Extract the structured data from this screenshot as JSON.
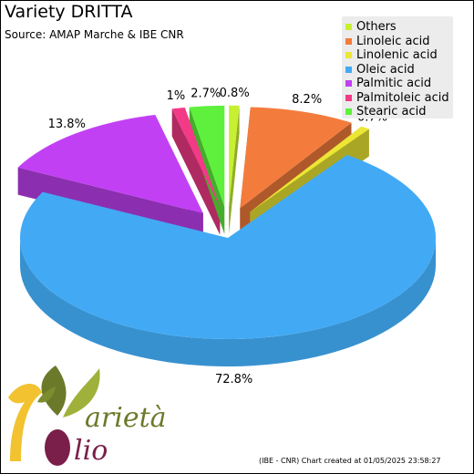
{
  "header": {
    "title": "Variety DRITTA",
    "subtitle": "Source: AMAP Marche & IBE CNR"
  },
  "footer": {
    "text": "(IBE - CNR) Chart created at 01/05/2025 23:58:27"
  },
  "logo": {
    "line1": "arietà",
    "line2": "lio",
    "colors": {
      "olive_dark": "#6b7a2a",
      "olive_light": "#9fb13a",
      "gold": "#f2c230",
      "wine": "#7a1f4a"
    }
  },
  "chart_data": {
    "type": "pie",
    "title": "Variety DRITTA",
    "subtitle": "Source: AMAP Marche & IBE CNR",
    "legend_position": "top-right",
    "slices": [
      {
        "name": "Others",
        "value": 0.8,
        "label": "0.8%",
        "color": "#c8f032"
      },
      {
        "name": "Linoleic acid",
        "value": 8.2,
        "label": "8.2%",
        "color": "#f37c3c"
      },
      {
        "name": "Linolenic acid",
        "value": 0.7,
        "label": "0.7%",
        "color": "#ece634"
      },
      {
        "name": "Oleic acid",
        "value": 72.8,
        "label": "72.8%",
        "color": "#42aaf4"
      },
      {
        "name": "Palmitic acid",
        "value": 13.8,
        "label": "13.8%",
        "color": "#c240f4"
      },
      {
        "name": "Palmitoleic acid",
        "value": 1.0,
        "label": "1%",
        "color": "#f23a86"
      },
      {
        "name": "Stearic acid",
        "value": 2.7,
        "label": "2.7%",
        "color": "#5ef03c"
      }
    ]
  }
}
